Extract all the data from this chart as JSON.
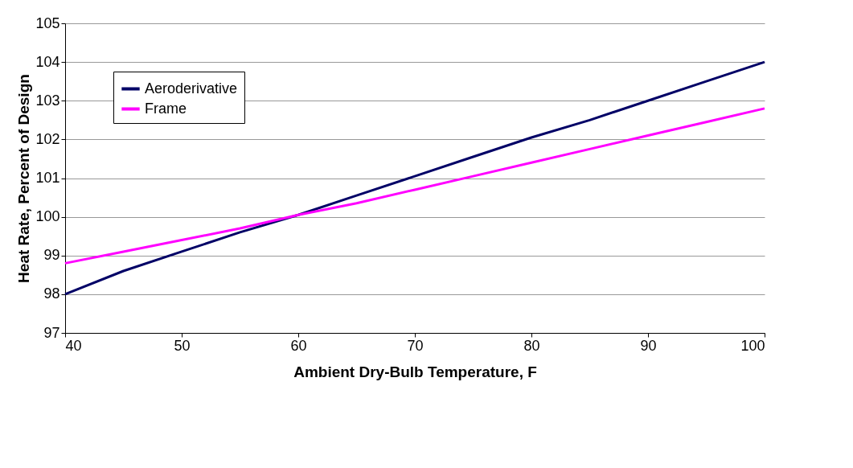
{
  "chart_data": {
    "type": "line",
    "xlabel": "Ambient Dry-Bulb Temperature, F",
    "ylabel": "Heat Rate, Percent of Design",
    "x": [
      40,
      45,
      50,
      55,
      60,
      65,
      70,
      75,
      80,
      85,
      90,
      95,
      100
    ],
    "series": [
      {
        "name": "Aeroderivative",
        "color": "#000066",
        "values": [
          98.0,
          98.6,
          99.1,
          99.6,
          100.05,
          100.55,
          101.05,
          101.55,
          102.05,
          102.5,
          103.0,
          103.5,
          104.0
        ]
      },
      {
        "name": "Frame",
        "color": "#ff00ff",
        "values": [
          98.8,
          99.1,
          99.4,
          99.7,
          100.05,
          100.35,
          100.7,
          101.05,
          101.4,
          101.75,
          102.1,
          102.45,
          102.8
        ]
      }
    ],
    "xlim": [
      40,
      100
    ],
    "xticks": [
      40,
      50,
      60,
      70,
      80,
      90,
      100
    ],
    "ylim": [
      97,
      105
    ],
    "yticks": [
      97,
      98,
      99,
      100,
      101,
      102,
      103,
      104,
      105
    ],
    "grid": "y",
    "legend": "top left",
    "marker": "none",
    "line_style": "solid"
  }
}
